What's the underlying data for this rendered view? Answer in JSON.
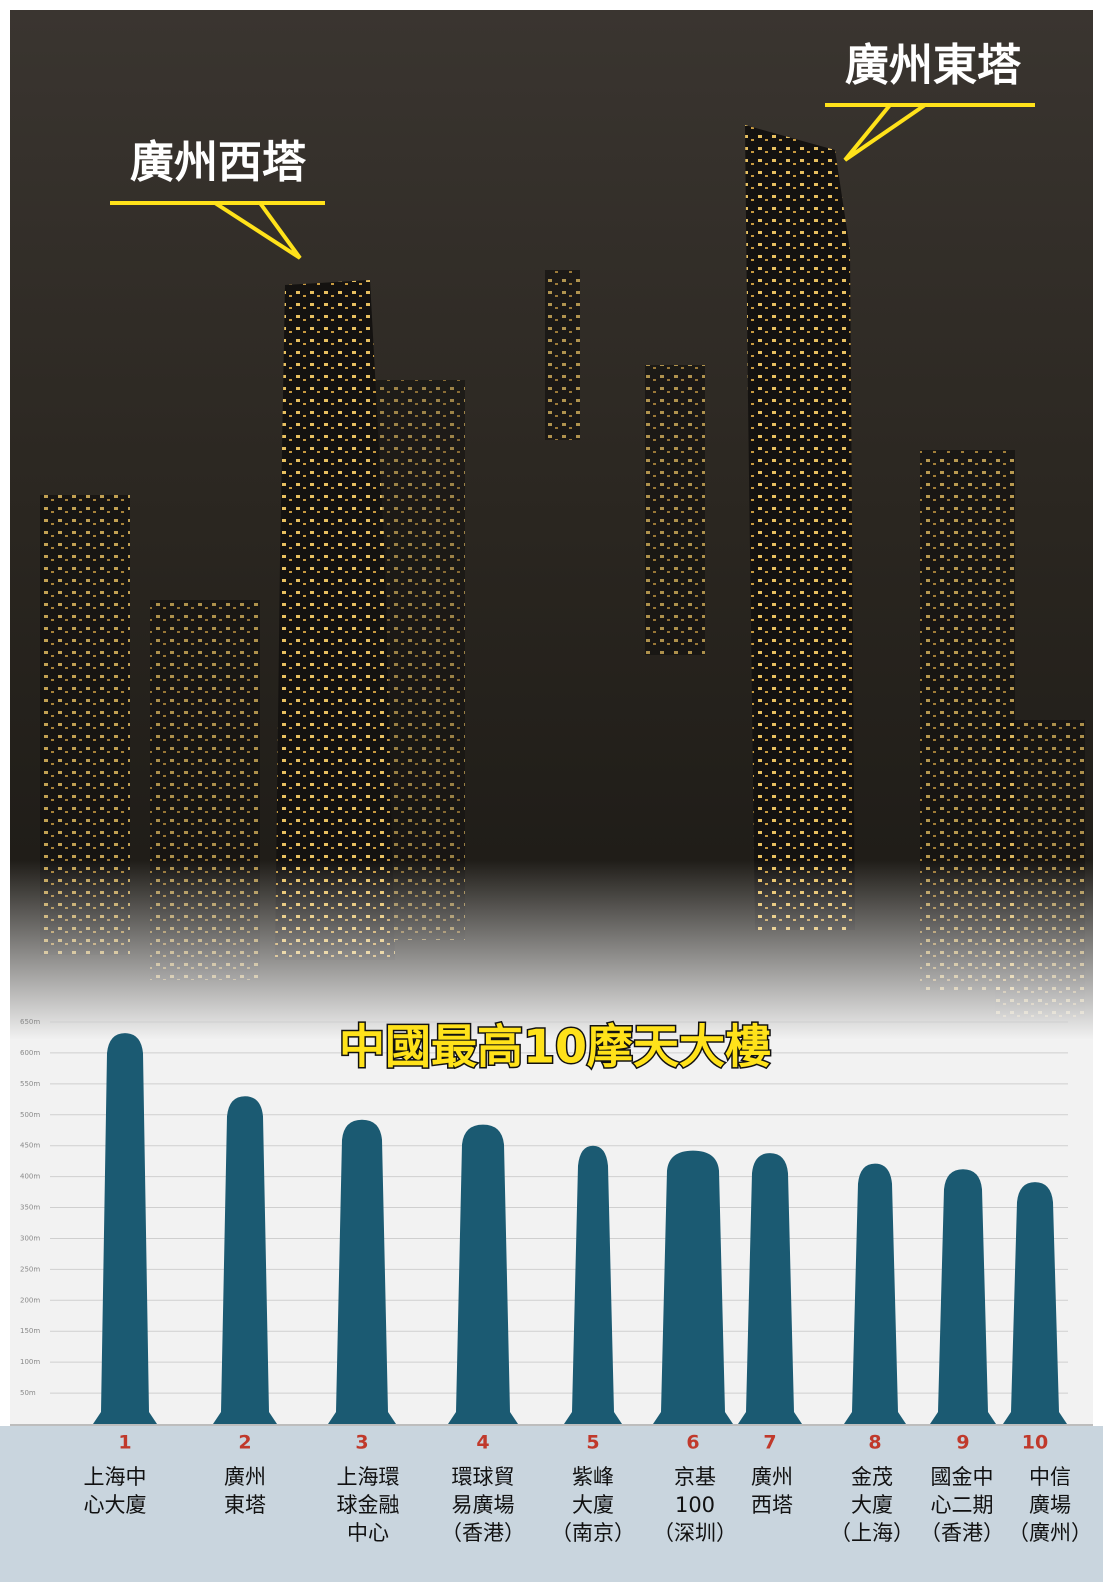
{
  "photo_labels": {
    "west": "廣州西塔",
    "east": "廣州東塔"
  },
  "chart_data": {
    "type": "silhouette-bar",
    "title": "中國最高10摩天大樓",
    "ranks": [
      "1",
      "2",
      "3",
      "4",
      "5",
      "6",
      "7",
      "8",
      "9",
      "10"
    ],
    "categories": [
      [
        "上海中",
        "心大廈"
      ],
      [
        "廣州",
        "東塔"
      ],
      [
        "上海環",
        "球金融",
        "中心"
      ],
      [
        "環球貿",
        "易廣場",
        "（香港）"
      ],
      [
        "紫峰",
        "大廈",
        "（南京）"
      ],
      [
        "京基",
        "100",
        "（深圳）"
      ],
      [
        "廣州",
        "西塔"
      ],
      [
        "金茂",
        "大廈",
        "（上海）"
      ],
      [
        "國金中",
        "心二期",
        "（香港）"
      ],
      [
        "中信",
        "廣場",
        "（廣州）"
      ]
    ],
    "values": [
      632,
      530,
      492,
      484,
      450,
      442,
      438,
      421,
      412,
      391
    ],
    "color": "#1b5a72",
    "ylim": [
      0,
      650
    ],
    "yticks": [
      {
        "value": 50,
        "label": "50m"
      },
      {
        "value": 100,
        "label": "100m"
      },
      {
        "value": 150,
        "label": "150m"
      },
      {
        "value": 200,
        "label": "200m"
      },
      {
        "value": 250,
        "label": "250m"
      },
      {
        "value": 300,
        "label": "300m"
      },
      {
        "value": 350,
        "label": "350m"
      },
      {
        "value": 400,
        "label": "400m"
      },
      {
        "value": 450,
        "label": "450m"
      },
      {
        "value": 500,
        "label": "500m"
      },
      {
        "value": 550,
        "label": "550m"
      },
      {
        "value": 600,
        "label": "600m"
      },
      {
        "value": 650,
        "label": "650m"
      }
    ],
    "grid": true
  }
}
